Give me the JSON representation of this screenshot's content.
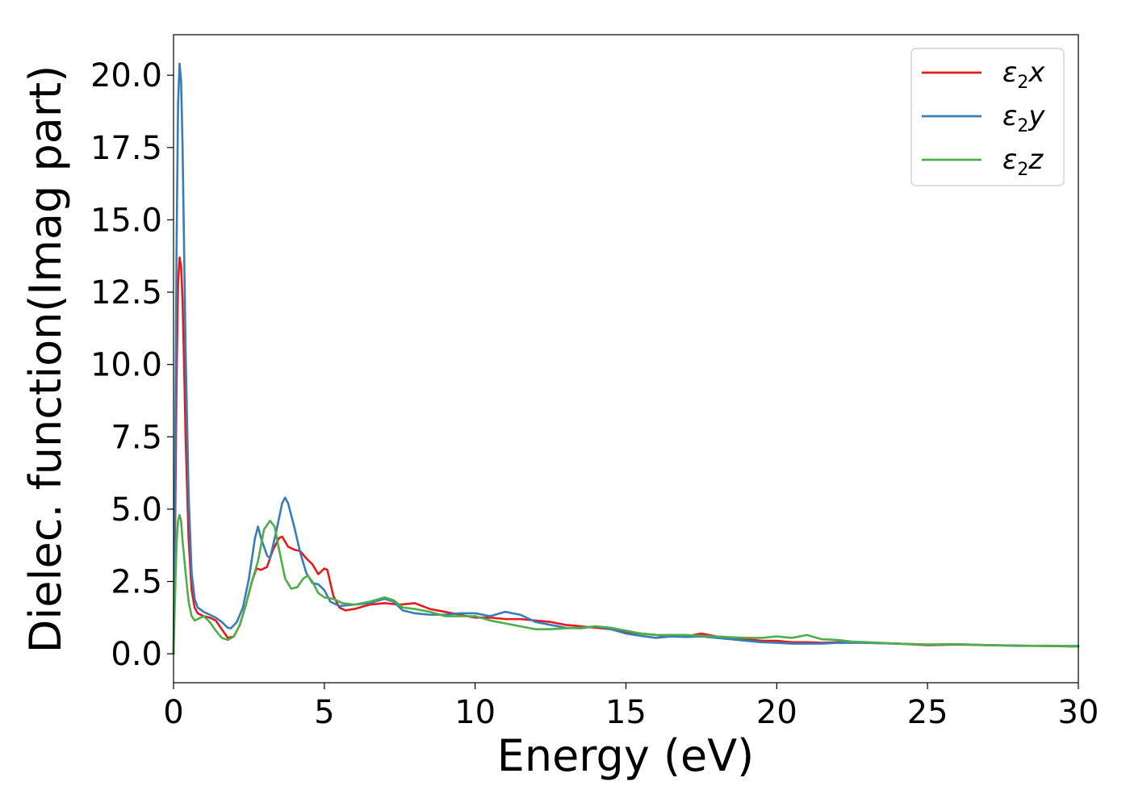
{
  "chart_data": {
    "type": "line",
    "title": "",
    "xlabel": "Energy (eV)",
    "ylabel": "Dielec. function(Imag part)",
    "xlim": [
      0,
      30
    ],
    "ylim": [
      -1.0,
      21.4
    ],
    "xticks": [
      0,
      5,
      10,
      15,
      20,
      25,
      30
    ],
    "xtick_labels": [
      "0",
      "5",
      "10",
      "15",
      "20",
      "25",
      "30"
    ],
    "yticks": [
      0,
      2.5,
      5,
      7.5,
      10,
      12.5,
      15,
      17.5,
      20
    ],
    "ytick_labels": [
      "0.0",
      "2.5",
      "5.0",
      "7.5",
      "10.0",
      "12.5",
      "15.0",
      "17.5",
      "20.0"
    ],
    "grid": false,
    "legend_position": "top-right",
    "series": [
      {
        "name": "ε₂x",
        "legend_base": "ε",
        "legend_sub": "2",
        "legend_suffix": "x",
        "color": "#e41a1c",
        "points": [
          [
            0,
            0.0
          ],
          [
            0.05,
            4.0
          ],
          [
            0.1,
            9.5
          ],
          [
            0.15,
            12.8
          ],
          [
            0.2,
            13.7
          ],
          [
            0.25,
            13.4
          ],
          [
            0.3,
            12.2
          ],
          [
            0.35,
            10.0
          ],
          [
            0.4,
            7.5
          ],
          [
            0.5,
            4.0
          ],
          [
            0.6,
            2.2
          ],
          [
            0.7,
            1.6
          ],
          [
            0.8,
            1.4
          ],
          [
            1.0,
            1.3
          ],
          [
            1.2,
            1.25
          ],
          [
            1.4,
            1.15
          ],
          [
            1.6,
            0.85
          ],
          [
            1.8,
            0.55
          ],
          [
            2.0,
            0.6
          ],
          [
            2.2,
            1.0
          ],
          [
            2.4,
            1.7
          ],
          [
            2.6,
            2.5
          ],
          [
            2.75,
            2.95
          ],
          [
            2.9,
            2.9
          ],
          [
            3.1,
            3.0
          ],
          [
            3.3,
            3.6
          ],
          [
            3.5,
            4.0
          ],
          [
            3.6,
            4.05
          ],
          [
            3.8,
            3.7
          ],
          [
            4.0,
            3.6
          ],
          [
            4.2,
            3.55
          ],
          [
            4.4,
            3.3
          ],
          [
            4.6,
            3.1
          ],
          [
            4.8,
            2.75
          ],
          [
            5.0,
            2.95
          ],
          [
            5.1,
            2.9
          ],
          [
            5.3,
            2.0
          ],
          [
            5.5,
            1.6
          ],
          [
            5.7,
            1.5
          ],
          [
            6.0,
            1.55
          ],
          [
            6.5,
            1.7
          ],
          [
            7.0,
            1.75
          ],
          [
            7.5,
            1.7
          ],
          [
            8.0,
            1.75
          ],
          [
            8.5,
            1.55
          ],
          [
            9.0,
            1.45
          ],
          [
            9.5,
            1.35
          ],
          [
            10.0,
            1.25
          ],
          [
            10.5,
            1.25
          ],
          [
            11.0,
            1.2
          ],
          [
            11.5,
            1.2
          ],
          [
            12.0,
            1.15
          ],
          [
            12.5,
            1.1
          ],
          [
            13.0,
            1.0
          ],
          [
            13.5,
            0.95
          ],
          [
            14.0,
            0.9
          ],
          [
            14.5,
            0.85
          ],
          [
            15.0,
            0.75
          ],
          [
            15.5,
            0.7
          ],
          [
            16.0,
            0.65
          ],
          [
            16.5,
            0.6
          ],
          [
            17.0,
            0.6
          ],
          [
            17.5,
            0.7
          ],
          [
            18.0,
            0.6
          ],
          [
            18.5,
            0.55
          ],
          [
            19.0,
            0.5
          ],
          [
            19.5,
            0.45
          ],
          [
            20.0,
            0.45
          ],
          [
            20.5,
            0.4
          ],
          [
            21.0,
            0.4
          ],
          [
            21.5,
            0.38
          ],
          [
            22.0,
            0.4
          ],
          [
            22.5,
            0.4
          ],
          [
            23.0,
            0.38
          ],
          [
            24.0,
            0.35
          ],
          [
            25.0,
            0.3
          ],
          [
            26.0,
            0.32
          ],
          [
            27.0,
            0.3
          ],
          [
            28.0,
            0.28
          ],
          [
            29.0,
            0.27
          ],
          [
            30.0,
            0.25
          ]
        ]
      },
      {
        "name": "ε₂y",
        "legend_base": "ε",
        "legend_sub": "2",
        "legend_suffix": "y",
        "color": "#377eb8",
        "points": [
          [
            0,
            0.0
          ],
          [
            0.05,
            6.0
          ],
          [
            0.1,
            14.0
          ],
          [
            0.15,
            19.0
          ],
          [
            0.2,
            20.4
          ],
          [
            0.25,
            19.8
          ],
          [
            0.3,
            17.5
          ],
          [
            0.35,
            14.0
          ],
          [
            0.4,
            10.5
          ],
          [
            0.5,
            5.5
          ],
          [
            0.6,
            2.8
          ],
          [
            0.7,
            1.9
          ],
          [
            0.8,
            1.6
          ],
          [
            1.0,
            1.45
          ],
          [
            1.2,
            1.35
          ],
          [
            1.4,
            1.25
          ],
          [
            1.6,
            1.1
          ],
          [
            1.8,
            0.9
          ],
          [
            1.9,
            0.88
          ],
          [
            2.1,
            1.1
          ],
          [
            2.3,
            1.6
          ],
          [
            2.5,
            2.6
          ],
          [
            2.7,
            4.0
          ],
          [
            2.8,
            4.4
          ],
          [
            2.9,
            4.0
          ],
          [
            3.1,
            3.4
          ],
          [
            3.2,
            3.3
          ],
          [
            3.4,
            4.2
          ],
          [
            3.6,
            5.2
          ],
          [
            3.7,
            5.4
          ],
          [
            3.8,
            5.2
          ],
          [
            4.0,
            4.4
          ],
          [
            4.2,
            3.5
          ],
          [
            4.4,
            2.8
          ],
          [
            4.6,
            2.45
          ],
          [
            4.8,
            2.4
          ],
          [
            5.0,
            2.2
          ],
          [
            5.2,
            1.8
          ],
          [
            5.5,
            1.65
          ],
          [
            6.0,
            1.7
          ],
          [
            6.5,
            1.75
          ],
          [
            7.0,
            1.9
          ],
          [
            7.3,
            1.8
          ],
          [
            7.6,
            1.5
          ],
          [
            8.0,
            1.4
          ],
          [
            8.5,
            1.35
          ],
          [
            9.0,
            1.35
          ],
          [
            9.5,
            1.4
          ],
          [
            10.0,
            1.4
          ],
          [
            10.5,
            1.3
          ],
          [
            11.0,
            1.45
          ],
          [
            11.5,
            1.35
          ],
          [
            12.0,
            1.1
          ],
          [
            12.5,
            1.0
          ],
          [
            13.0,
            0.9
          ],
          [
            13.5,
            0.88
          ],
          [
            14.0,
            0.95
          ],
          [
            14.5,
            0.85
          ],
          [
            15.0,
            0.7
          ],
          [
            15.5,
            0.62
          ],
          [
            16.0,
            0.55
          ],
          [
            16.5,
            0.6
          ],
          [
            17.0,
            0.58
          ],
          [
            17.5,
            0.6
          ],
          [
            18.0,
            0.55
          ],
          [
            18.5,
            0.5
          ],
          [
            19.0,
            0.45
          ],
          [
            19.5,
            0.4
          ],
          [
            20.0,
            0.38
          ],
          [
            20.5,
            0.35
          ],
          [
            21.0,
            0.35
          ],
          [
            21.5,
            0.35
          ],
          [
            22.0,
            0.38
          ],
          [
            22.5,
            0.38
          ],
          [
            23.0,
            0.38
          ],
          [
            24.0,
            0.35
          ],
          [
            25.0,
            0.32
          ],
          [
            26.0,
            0.33
          ],
          [
            27.0,
            0.3
          ],
          [
            28.0,
            0.28
          ],
          [
            29.0,
            0.27
          ],
          [
            30.0,
            0.27
          ]
        ]
      },
      {
        "name": "ε₂z",
        "legend_base": "ε",
        "legend_sub": "2",
        "legend_suffix": "z",
        "color": "#4daf4a",
        "points": [
          [
            0,
            0.0
          ],
          [
            0.05,
            2.0
          ],
          [
            0.1,
            3.8
          ],
          [
            0.15,
            4.6
          ],
          [
            0.2,
            4.8
          ],
          [
            0.25,
            4.6
          ],
          [
            0.3,
            3.9
          ],
          [
            0.4,
            2.8
          ],
          [
            0.5,
            1.8
          ],
          [
            0.6,
            1.3
          ],
          [
            0.7,
            1.15
          ],
          [
            0.8,
            1.2
          ],
          [
            1.0,
            1.3
          ],
          [
            1.2,
            1.1
          ],
          [
            1.4,
            0.8
          ],
          [
            1.6,
            0.55
          ],
          [
            1.8,
            0.48
          ],
          [
            2.0,
            0.6
          ],
          [
            2.2,
            1.0
          ],
          [
            2.4,
            1.7
          ],
          [
            2.6,
            2.5
          ],
          [
            2.8,
            3.2
          ],
          [
            3.0,
            4.3
          ],
          [
            3.2,
            4.6
          ],
          [
            3.35,
            4.4
          ],
          [
            3.5,
            3.6
          ],
          [
            3.7,
            2.6
          ],
          [
            3.9,
            2.25
          ],
          [
            4.1,
            2.3
          ],
          [
            4.3,
            2.6
          ],
          [
            4.45,
            2.7
          ],
          [
            4.6,
            2.5
          ],
          [
            4.8,
            2.1
          ],
          [
            5.0,
            1.95
          ],
          [
            5.3,
            1.9
          ],
          [
            5.6,
            1.75
          ],
          [
            6.0,
            1.7
          ],
          [
            6.5,
            1.8
          ],
          [
            7.0,
            1.95
          ],
          [
            7.3,
            1.85
          ],
          [
            7.6,
            1.6
          ],
          [
            8.0,
            1.55
          ],
          [
            8.5,
            1.45
          ],
          [
            9.0,
            1.3
          ],
          [
            9.5,
            1.3
          ],
          [
            10.0,
            1.3
          ],
          [
            10.5,
            1.15
          ],
          [
            11.0,
            1.05
          ],
          [
            11.5,
            0.95
          ],
          [
            12.0,
            0.85
          ],
          [
            12.5,
            0.85
          ],
          [
            13.0,
            0.88
          ],
          [
            13.5,
            0.9
          ],
          [
            14.0,
            0.95
          ],
          [
            14.5,
            0.9
          ],
          [
            15.0,
            0.8
          ],
          [
            15.5,
            0.7
          ],
          [
            16.0,
            0.65
          ],
          [
            16.5,
            0.65
          ],
          [
            17.0,
            0.65
          ],
          [
            17.5,
            0.62
          ],
          [
            18.0,
            0.6
          ],
          [
            18.5,
            0.57
          ],
          [
            19.0,
            0.55
          ],
          [
            19.5,
            0.55
          ],
          [
            20.0,
            0.6
          ],
          [
            20.5,
            0.55
          ],
          [
            21.0,
            0.65
          ],
          [
            21.5,
            0.5
          ],
          [
            22.0,
            0.48
          ],
          [
            22.5,
            0.42
          ],
          [
            23.0,
            0.4
          ],
          [
            24.0,
            0.35
          ],
          [
            25.0,
            0.32
          ],
          [
            26.0,
            0.33
          ],
          [
            27.0,
            0.3
          ],
          [
            28.0,
            0.27
          ],
          [
            29.0,
            0.28
          ],
          [
            30.0,
            0.25
          ]
        ]
      }
    ]
  }
}
